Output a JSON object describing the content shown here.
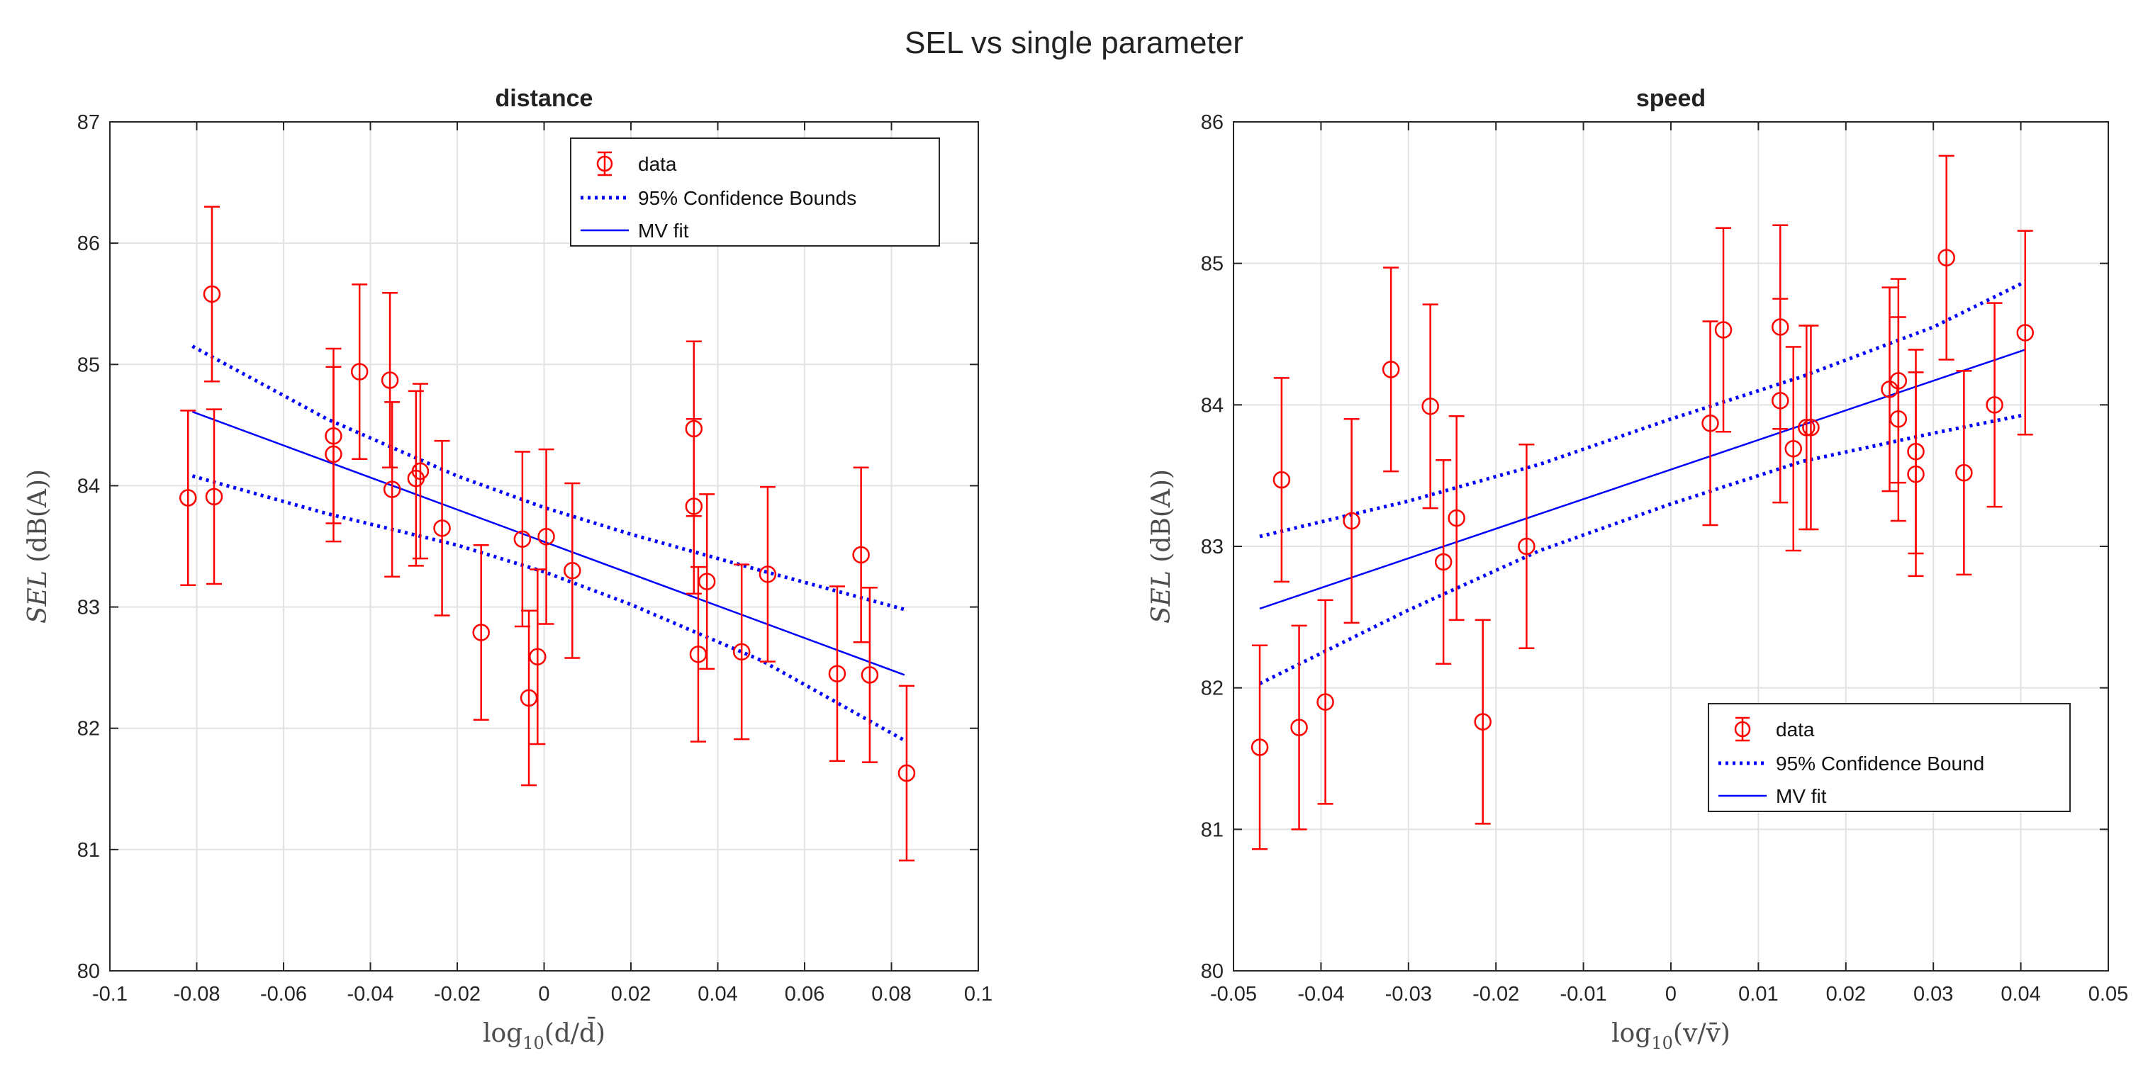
{
  "figure_title": "SEL vs single parameter",
  "chart_data": [
    {
      "type": "scatter",
      "title": "distance",
      "xlabel": {
        "main": "log",
        "sub": "10",
        "arg": "(d/d̄)"
      },
      "ylabel": {
        "var": "SEL",
        "unit": "(dB(A))"
      },
      "xlim": [
        -0.1,
        0.1
      ],
      "ylim": [
        80,
        87
      ],
      "xticks": [
        -0.1,
        -0.08,
        -0.06,
        -0.04,
        -0.02,
        0,
        0.02,
        0.04,
        0.06,
        0.08,
        0.1
      ],
      "xtick_labels": [
        "-0.1",
        "-0.08",
        "-0.06",
        "-0.04",
        "-0.02",
        "0",
        "0.02",
        "0.04",
        "0.06",
        "0.08",
        "0.1"
      ],
      "yticks": [
        80,
        81,
        82,
        83,
        84,
        85,
        86,
        87
      ],
      "ytick_labels": [
        "80",
        "81",
        "82",
        "83",
        "84",
        "85",
        "86",
        "87"
      ],
      "grid": true,
      "legend_position": "top-right",
      "legend": [
        "data",
        "95% Confidence Bounds",
        "MV fit"
      ],
      "error": 0.72,
      "colors": {
        "data": "#ff0000",
        "fit": "#0000ff",
        "bounds": "#0000ff",
        "grid": "#e2e2e2"
      },
      "points": [
        [
          -0.082,
          83.9
        ],
        [
          -0.0765,
          85.58
        ],
        [
          -0.076,
          83.91
        ],
        [
          -0.0485,
          84.41
        ],
        [
          -0.0485,
          84.26
        ],
        [
          -0.0425,
          84.94
        ],
        [
          -0.0355,
          84.87
        ],
        [
          -0.035,
          83.97
        ],
        [
          -0.0295,
          84.06
        ],
        [
          -0.0285,
          84.12
        ],
        [
          -0.0235,
          83.65
        ],
        [
          -0.0145,
          82.79
        ],
        [
          -0.005,
          83.56
        ],
        [
          -0.0035,
          82.25
        ],
        [
          -0.0015,
          82.59
        ],
        [
          0.0005,
          83.58
        ],
        [
          0.0065,
          83.3
        ],
        [
          0.0345,
          84.47
        ],
        [
          0.0345,
          83.83
        ],
        [
          0.0355,
          82.61
        ],
        [
          0.0375,
          83.21
        ],
        [
          0.0455,
          82.63
        ],
        [
          0.0515,
          83.27
        ],
        [
          0.0675,
          82.45
        ],
        [
          0.073,
          83.43
        ],
        [
          0.075,
          82.44
        ],
        [
          0.0835,
          81.63
        ]
      ],
      "fit": {
        "x": [
          -0.081,
          0.083
        ],
        "y": [
          84.61,
          82.44
        ]
      },
      "upper_bound": {
        "x": [
          -0.081,
          -0.05,
          -0.02,
          0,
          0.02,
          0.05,
          0.083
        ],
        "y": [
          85.15,
          84.55,
          84.08,
          83.82,
          83.6,
          83.3,
          82.98
        ]
      },
      "lower_bound": {
        "x": [
          -0.081,
          -0.05,
          -0.02,
          0,
          0.02,
          0.05,
          0.083
        ],
        "y": [
          84.08,
          83.77,
          83.51,
          83.29,
          83.02,
          82.56,
          81.9
        ]
      }
    },
    {
      "type": "scatter",
      "title": "speed",
      "xlabel": {
        "main": "log",
        "sub": "10",
        "arg": "(v/v̄)"
      },
      "ylabel": {
        "var": "SEL",
        "unit": "(dB(A))"
      },
      "xlim": [
        -0.05,
        0.05
      ],
      "ylim": [
        80,
        86
      ],
      "xticks": [
        -0.05,
        -0.04,
        -0.03,
        -0.02,
        -0.01,
        0,
        0.01,
        0.02,
        0.03,
        0.04,
        0.05
      ],
      "xtick_labels": [
        "-0.05",
        "-0.04",
        "-0.03",
        "-0.02",
        "-0.01",
        "0",
        "0.01",
        "0.02",
        "0.03",
        "0.04",
        "0.05"
      ],
      "yticks": [
        80,
        81,
        82,
        83,
        84,
        85,
        86
      ],
      "ytick_labels": [
        "80",
        "81",
        "82",
        "83",
        "84",
        "85",
        "86"
      ],
      "grid": true,
      "legend_position": "bottom-right",
      "legend": [
        "data",
        "95% Confidence Bound",
        "MV fit"
      ],
      "error": 0.72,
      "colors": {
        "data": "#ff0000",
        "fit": "#0000ff",
        "bounds": "#0000ff",
        "grid": "#e2e2e2"
      },
      "points": [
        [
          -0.047,
          81.58
        ],
        [
          -0.0445,
          83.47
        ],
        [
          -0.0425,
          81.72
        ],
        [
          -0.0395,
          81.9
        ],
        [
          -0.0365,
          83.18
        ],
        [
          -0.032,
          84.25
        ],
        [
          -0.0275,
          83.99
        ],
        [
          -0.026,
          82.89
        ],
        [
          -0.0245,
          83.2
        ],
        [
          -0.0215,
          81.76
        ],
        [
          -0.0165,
          83.0
        ],
        [
          0.0045,
          83.87
        ],
        [
          0.006,
          84.53
        ],
        [
          0.0125,
          84.55
        ],
        [
          0.0125,
          84.03
        ],
        [
          0.014,
          83.69
        ],
        [
          0.0155,
          83.84
        ],
        [
          0.016,
          83.84
        ],
        [
          0.025,
          84.11
        ],
        [
          0.026,
          84.17
        ],
        [
          0.026,
          83.9
        ],
        [
          0.028,
          83.67
        ],
        [
          0.028,
          83.51
        ],
        [
          0.0315,
          85.04
        ],
        [
          0.0335,
          83.52
        ],
        [
          0.037,
          84.0
        ],
        [
          0.0405,
          84.51
        ]
      ],
      "fit": {
        "x": [
          -0.047,
          0.0405
        ],
        "y": [
          82.56,
          84.39
        ]
      },
      "upper_bound": {
        "x": [
          -0.047,
          -0.03,
          -0.015,
          0,
          0.015,
          0.03,
          0.0405
        ],
        "y": [
          83.07,
          83.32,
          83.58,
          83.9,
          84.2,
          84.55,
          84.87
        ]
      },
      "lower_bound": {
        "x": [
          -0.047,
          -0.03,
          -0.015,
          0,
          0.015,
          0.03,
          0.0405
        ],
        "y": [
          82.03,
          82.55,
          82.97,
          83.3,
          83.6,
          83.8,
          83.93
        ]
      }
    }
  ]
}
